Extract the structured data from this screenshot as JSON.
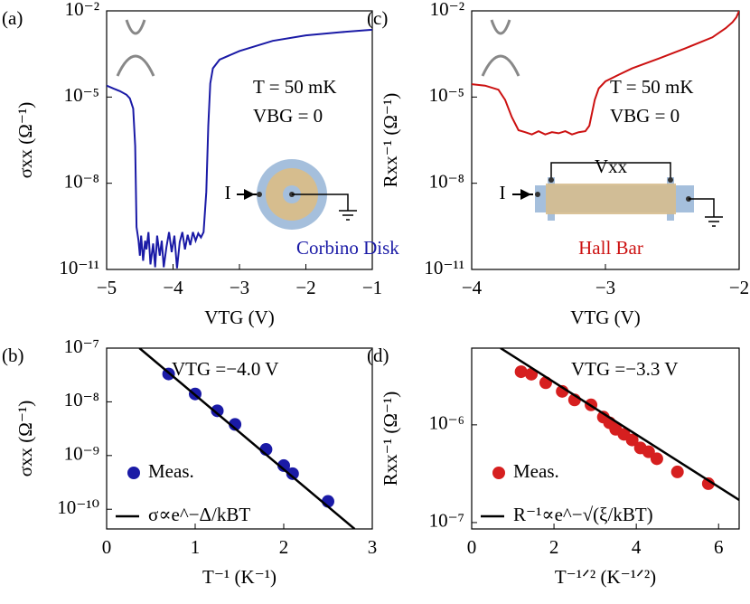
{
  "chart_data": [
    {
      "type": "line",
      "panel_label": "(a)",
      "xlabel": "VTG (V)",
      "ylabel": "σxx (Ω⁻¹)",
      "log_y": true,
      "xlim": [
        -5,
        -1
      ],
      "xticks": [
        {
          "value": -5,
          "label": "−5"
        },
        {
          "value": -4,
          "label": "−4"
        },
        {
          "value": -3,
          "label": "−3"
        },
        {
          "value": -2,
          "label": "−2"
        },
        {
          "value": -1,
          "label": "−1"
        }
      ],
      "ylim": [
        1e-11,
        0.01
      ],
      "yticks": [
        {
          "value": 1e-11,
          "label": "10⁻¹¹"
        },
        {
          "value": 1e-08,
          "label": "10⁻⁸"
        },
        {
          "value": 1e-05,
          "label": "10⁻⁵"
        },
        {
          "value": 0.01,
          "label": "10⁻²"
        }
      ],
      "annotations": [
        "T = 50 mK",
        "VBG = 0",
        "Corbino Disk",
        "I"
      ],
      "series": [
        {
          "type": "line",
          "color": "#1a1aa6",
          "x": [
            -5.0,
            -4.9,
            -4.8,
            -4.7,
            -4.65,
            -4.6,
            -4.57,
            -4.55,
            -4.52,
            -4.5,
            -4.48,
            -4.45,
            -4.42,
            -4.4,
            -4.37,
            -4.34,
            -4.3,
            -4.27,
            -4.24,
            -4.2,
            -4.17,
            -4.14,
            -4.1,
            -4.06,
            -4.02,
            -3.98,
            -3.94,
            -3.9,
            -3.86,
            -3.82,
            -3.78,
            -3.74,
            -3.7,
            -3.66,
            -3.62,
            -3.58,
            -3.54,
            -3.5,
            -3.47,
            -3.44,
            -3.4,
            -3.3,
            -3.0,
            -2.5,
            -2.0,
            -1.5,
            -1.0
          ],
          "values": [
            2.5e-05,
            2e-05,
            1.6e-05,
            1.2e-05,
            9e-06,
            4e-06,
            2e-07,
            3e-10,
            1e-10,
            3e-11,
            1.5e-10,
            2e-11,
            1e-10,
            5e-11,
            2e-10,
            1.5e-11,
            8e-11,
            1.2e-11,
            1.5e-10,
            3e-11,
            1e-10,
            1.2e-11,
            6e-11,
            2e-10,
            4e-11,
            1.5e-10,
            1.1e-11,
            9e-11,
            2e-10,
            5e-11,
            1.6e-10,
            7e-11,
            2e-10,
            1e-10,
            1.8e-10,
            1.3e-10,
            2e-10,
            5e-09,
            1e-06,
            3e-05,
            0.0001,
            0.0002,
            0.0004,
            0.0009,
            0.0014,
            0.0018,
            0.0022
          ]
        }
      ]
    },
    {
      "type": "scatter",
      "panel_label": "(b)",
      "xlabel": "T⁻¹ (K⁻¹)",
      "ylabel": "σxx (Ω⁻¹)",
      "log_y": true,
      "xlim": [
        0,
        3
      ],
      "xticks": [
        0,
        1,
        2,
        3
      ],
      "ylim": [
        4.3e-11,
        1e-07
      ],
      "yticks": [
        {
          "value": 1e-10,
          "label": "10⁻¹⁰"
        },
        {
          "value": 1e-09,
          "label": "10⁻⁹"
        },
        {
          "value": 1e-08,
          "label": "10⁻⁸"
        },
        {
          "value": 1e-07,
          "label": "10⁻⁷"
        }
      ],
      "annotations": [
        "VTG =−4.0 V"
      ],
      "series": [
        {
          "type": "scatter",
          "name": "Meas.",
          "color": "#1a1aa6",
          "x": [
            0.7,
            1.0,
            1.25,
            1.45,
            1.8,
            2.0,
            2.1,
            2.5
          ],
          "values": [
            3.3e-08,
            1.4e-08,
            6.8e-09,
            3.8e-09,
            1.3e-09,
            6.5e-10,
            4.6e-10,
            1.4e-10
          ]
        },
        {
          "type": "line",
          "name": "σ∝e^−Δ/kBT",
          "color": "#000000",
          "x": [
            0.37,
            2.8
          ],
          "values": [
            1e-07,
            4.3e-11
          ]
        }
      ]
    },
    {
      "type": "line",
      "panel_label": "(c)",
      "xlabel": "VTG (V)",
      "ylabel": "Rxx⁻¹ (Ω⁻¹)",
      "log_y": true,
      "xlim": [
        -4,
        -2
      ],
      "xticks": [
        {
          "value": -4,
          "label": "−4"
        },
        {
          "value": -3,
          "label": "−3"
        },
        {
          "value": -2,
          "label": "−2"
        }
      ],
      "ylim": [
        1e-11,
        0.01
      ],
      "yticks": [
        {
          "value": 1e-11,
          "label": "10⁻¹¹"
        },
        {
          "value": 1e-08,
          "label": "10⁻⁸"
        },
        {
          "value": 1e-05,
          "label": "10⁻⁵"
        },
        {
          "value": 0.01,
          "label": "10⁻²"
        }
      ],
      "annotations": [
        "T = 50 mK",
        "VBG = 0",
        "Vxx",
        "Hall Bar",
        "I"
      ],
      "series": [
        {
          "type": "line",
          "color": "#cc1111",
          "x": [
            -4.0,
            -3.9,
            -3.8,
            -3.75,
            -3.7,
            -3.65,
            -3.6,
            -3.55,
            -3.5,
            -3.45,
            -3.4,
            -3.35,
            -3.3,
            -3.25,
            -3.2,
            -3.15,
            -3.12,
            -3.08,
            -3.05,
            -3.0,
            -2.9,
            -2.8,
            -2.6,
            -2.4,
            -2.2,
            -2.1,
            -2.05,
            -2.02,
            -2.0
          ],
          "values": [
            2.8e-05,
            2.5e-05,
            1.8e-05,
            8e-06,
            2e-06,
            7e-07,
            6e-07,
            5e-07,
            6.5e-07,
            5e-07,
            6e-07,
            5.5e-07,
            6.5e-07,
            5e-07,
            6e-07,
            6.5e-07,
            1e-06,
            8e-06,
            2e-05,
            3.5e-05,
            6e-05,
            0.0001,
            0.00022,
            0.0005,
            0.0012,
            0.0025,
            0.004,
            0.006,
            0.01
          ]
        }
      ]
    },
    {
      "type": "scatter",
      "panel_label": "(d)",
      "xlabel": "T⁻¹ᐟ² (K⁻¹ᐟ²)",
      "ylabel": "Rxx⁻¹ (Ω⁻¹)",
      "log_y": true,
      "xlim": [
        0,
        6.5
      ],
      "xticks": [
        0,
        2,
        4,
        6
      ],
      "ylim": [
        8.6e-08,
        6.1e-06
      ],
      "yticks": [
        {
          "value": 1e-07,
          "label": "10⁻⁷"
        },
        {
          "value": 1e-06,
          "label": "10⁻⁶"
        }
      ],
      "annotations": [
        "VTG =−3.3 V"
      ],
      "series": [
        {
          "type": "scatter",
          "name": "Meas.",
          "color": "#d61f1f",
          "x": [
            1.2,
            1.45,
            1.8,
            2.2,
            2.5,
            2.9,
            3.2,
            3.35,
            3.5,
            3.7,
            3.9,
            4.1,
            4.3,
            4.5,
            5.0,
            5.75
          ],
          "values": [
            3.5e-06,
            3.3e-06,
            2.7e-06,
            2.2e-06,
            1.8e-06,
            1.6e-06,
            1.2e-06,
            1.05e-06,
            9e-07,
            8e-07,
            7e-07,
            5.8e-07,
            5.3e-07,
            4.5e-07,
            3.3e-07,
            2.5e-07
          ]
        },
        {
          "type": "line",
          "name": "R⁻¹∝e^−√(ξ/kBT)",
          "color": "#000000",
          "x": [
            0.7,
            6.5
          ],
          "values": [
            6.1e-06,
            1.7e-07
          ]
        }
      ]
    }
  ]
}
